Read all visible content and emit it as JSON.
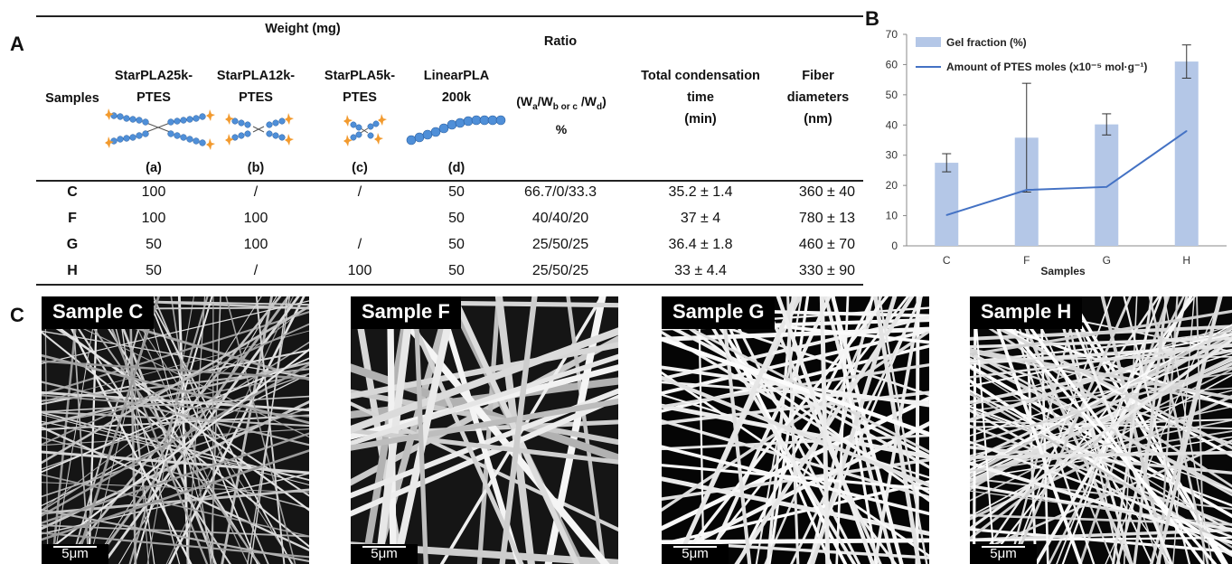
{
  "panels": {
    "a": "A",
    "b": "B",
    "c": "C"
  },
  "table": {
    "weight_header": "Weight (mg)",
    "ratio_header": "Ratio",
    "samples_header": "Samples",
    "columns": [
      {
        "line1": "StarPLA25k-",
        "line2": "PTES",
        "tag": "(a)"
      },
      {
        "line1": "StarPLA12k-",
        "line2": "PTES",
        "tag": "(b)"
      },
      {
        "line1": "StarPLA5k-",
        "line2": "PTES",
        "tag": "(c)"
      },
      {
        "line1": "LinearPLA",
        "line2": "200k",
        "tag": "(d)"
      }
    ],
    "ratio_formula": {
      "w": "(W",
      "a": "a",
      "slash1": "/W",
      "borc": "b or c",
      "slash2": " /W",
      "d": "d",
      "close": ")",
      "percent": "%"
    },
    "condensation_header": [
      "Total condensation",
      "time",
      "(min)"
    ],
    "fiber_header": [
      "Fiber",
      "diameters",
      "(nm)"
    ],
    "rows": [
      {
        "sample": "C",
        "a": "100",
        "b": "/",
        "c": "/",
        "d": "50",
        "ratio": "66.7/0/33.3",
        "time": "35.2 ± 1.4",
        "fiber": "360 ± 40"
      },
      {
        "sample": "F",
        "a": "100",
        "b": "100",
        "c": "",
        "d": "50",
        "ratio": "40/40/20",
        "time": "37 ± 4",
        "fiber": "780 ± 13"
      },
      {
        "sample": "G",
        "a": "50",
        "b": "100",
        "c": "/",
        "d": "50",
        "ratio": "25/50/25",
        "time": "36.4 ± 1.8",
        "fiber": "460 ± 70"
      },
      {
        "sample": "H",
        "a": "50",
        "b": "/",
        "c": "100",
        "d": "50",
        "ratio": "25/50/25",
        "time": "33 ± 4.4",
        "fiber": "330 ± 90"
      }
    ]
  },
  "chart_data": {
    "type": "bar",
    "categories": [
      "C",
      "F",
      "G",
      "H"
    ],
    "series": [
      {
        "name": "Gel fraction (%)",
        "kind": "bar",
        "values": [
          27.5,
          35.8,
          40.2,
          61
        ],
        "errors": [
          3,
          18,
          3.5,
          5.5
        ],
        "color": "#b4c7e7"
      },
      {
        "name": "Amount of PTES moles",
        "unit": "(x10⁻⁵ mol·g⁻¹)",
        "kind": "line",
        "values": [
          10.2,
          18.5,
          19.5,
          38
        ],
        "color": "#4472c4"
      }
    ],
    "xlabel": "Samples",
    "ylabel": "",
    "ylim": [
      0,
      70
    ],
    "yticks": [
      "0",
      "10",
      "20",
      "30",
      "40",
      "50",
      "60",
      "70"
    ],
    "legend": "top-left",
    "grid": false
  },
  "sem_images": [
    {
      "label": "Sample C",
      "scale": "5μm"
    },
    {
      "label": "Sample F",
      "scale": "5μm"
    },
    {
      "label": "Sample G",
      "scale": "5μm"
    },
    {
      "label": "Sample H",
      "scale": "5μm"
    }
  ],
  "colors": {
    "bead": "#4f8fd8",
    "star": "#f29a2e",
    "bar": "#b4c7e7",
    "line": "#4472c4"
  }
}
